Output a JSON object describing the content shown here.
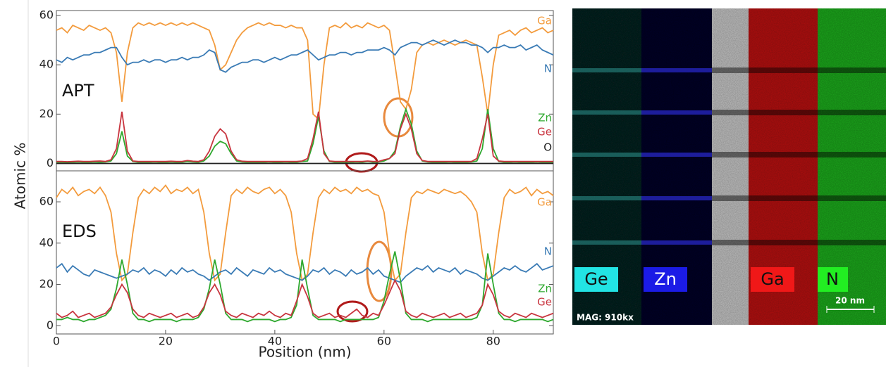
{
  "chart_data": [
    {
      "type": "line",
      "annotation": "APT",
      "y_label": "Atomic %",
      "x": [
        0,
        1,
        2,
        3,
        4,
        5,
        6,
        7,
        8,
        9,
        10,
        11,
        12,
        13,
        14,
        15,
        16,
        17,
        18,
        19,
        20,
        21,
        22,
        23,
        24,
        25,
        26,
        27,
        28,
        29,
        30,
        31,
        32,
        33,
        34,
        35,
        36,
        37,
        38,
        39,
        40,
        41,
        42,
        43,
        44,
        45,
        46,
        47,
        48,
        49,
        50,
        51,
        52,
        53,
        54,
        55,
        56,
        57,
        58,
        59,
        60,
        61,
        62,
        63,
        64,
        65,
        66,
        67,
        68,
        69,
        70,
        71,
        72,
        73,
        74,
        75,
        76,
        77,
        78,
        79,
        80,
        81,
        82,
        83,
        84,
        85,
        86,
        87,
        88,
        89,
        90,
        91
      ],
      "xlim": [
        0,
        91
      ],
      "ylim": [
        -3,
        62
      ],
      "yticks": [
        0,
        20,
        40,
        60
      ],
      "series": [
        {
          "name": "Ga",
          "color": "#f39b3d",
          "values": [
            54,
            55,
            53,
            56,
            55,
            54,
            56,
            55,
            54,
            55,
            53,
            45,
            25,
            45,
            55,
            57,
            56,
            57,
            56,
            57,
            56,
            57,
            56,
            57,
            56,
            57,
            56,
            55,
            54,
            48,
            38,
            40,
            45,
            50,
            53,
            55,
            56,
            57,
            56,
            57,
            56,
            56,
            55,
            56,
            55,
            55,
            50,
            20,
            18,
            40,
            55,
            56,
            55,
            57,
            55,
            56,
            55,
            57,
            56,
            55,
            56,
            54,
            40,
            25,
            22,
            30,
            45,
            48,
            49,
            48,
            49,
            50,
            49,
            48,
            49,
            50,
            49,
            48,
            35,
            20,
            40,
            52,
            53,
            54,
            52,
            54,
            55,
            53,
            54,
            55,
            53,
            54
          ]
        },
        {
          "name": "N",
          "color": "#3a7bb5",
          "values": [
            42,
            41,
            43,
            42,
            43,
            44,
            44,
            45,
            45,
            46,
            47,
            47,
            43,
            40,
            41,
            41,
            42,
            41,
            42,
            42,
            41,
            42,
            42,
            43,
            42,
            43,
            43,
            44,
            46,
            45,
            38,
            37,
            39,
            40,
            41,
            41,
            42,
            42,
            41,
            42,
            43,
            42,
            43,
            44,
            44,
            45,
            46,
            44,
            42,
            43,
            44,
            44,
            45,
            45,
            44,
            45,
            45,
            46,
            46,
            46,
            47,
            46,
            44,
            47,
            48,
            49,
            49,
            48,
            49,
            50,
            49,
            48,
            49,
            50,
            49,
            49,
            48,
            48,
            47,
            45,
            47,
            47,
            48,
            47,
            47,
            48,
            46,
            47,
            48,
            46,
            45,
            44
          ]
        },
        {
          "name": "Zn",
          "color": "#2ea82e",
          "values": [
            0.5,
            0.5,
            0.4,
            0.5,
            0.6,
            0.5,
            0.5,
            0.6,
            0.5,
            0.6,
            1,
            4,
            13,
            3,
            0.8,
            0.5,
            0.5,
            0.5,
            0.6,
            0.5,
            0.5,
            0.6,
            0.5,
            0.5,
            0.8,
            0.6,
            0.5,
            1,
            3,
            7,
            9,
            8,
            4,
            1,
            0.6,
            0.5,
            0.5,
            0.5,
            0.5,
            0.6,
            0.5,
            0.5,
            0.6,
            0.5,
            0.5,
            0.8,
            1,
            8,
            19,
            5,
            0.8,
            0.5,
            0.5,
            0.5,
            0.5,
            0.6,
            0.5,
            0.8,
            0.5,
            0.6,
            1,
            2,
            5,
            15,
            22,
            16,
            5,
            1,
            0.6,
            0.5,
            0.5,
            0.5,
            0.6,
            0.5,
            0.5,
            0.5,
            0.6,
            1,
            6,
            22,
            6,
            0.8,
            0.5,
            0.5,
            0.6,
            0.5,
            0.5,
            0.5,
            0.6,
            0.5,
            0.5,
            0.5
          ]
        },
        {
          "name": "Ge",
          "color": "#c8353f",
          "values": [
            0.8,
            0.8,
            0.7,
            0.8,
            0.9,
            0.8,
            0.8,
            0.9,
            1,
            0.8,
            1.5,
            6,
            21,
            5,
            1,
            0.8,
            0.8,
            0.8,
            0.8,
            0.8,
            0.8,
            0.9,
            0.8,
            0.8,
            1.2,
            0.9,
            0.8,
            1.5,
            5,
            11,
            14,
            12,
            5,
            1.5,
            0.9,
            0.8,
            0.8,
            0.8,
            0.8,
            0.8,
            0.8,
            0.8,
            0.8,
            0.8,
            0.8,
            1,
            2,
            10,
            21,
            4,
            1,
            0.8,
            0.8,
            0.8,
            0.8,
            0.8,
            0.8,
            1,
            0.8,
            0.8,
            1.5,
            2,
            4,
            14,
            20,
            14,
            4,
            1.2,
            0.8,
            0.8,
            0.8,
            0.8,
            0.8,
            0.8,
            0.8,
            0.8,
            0.8,
            2,
            10,
            20,
            3,
            1,
            0.8,
            0.8,
            0.8,
            0.8,
            0.8,
            0.8,
            0.8,
            0.8,
            0.8,
            0.8
          ]
        },
        {
          "name": "O",
          "color": "#222222",
          "values": [
            0,
            0,
            0,
            0,
            0,
            0,
            0,
            0,
            0,
            0,
            0,
            0,
            0,
            0,
            0,
            0,
            0,
            0,
            0,
            0,
            0,
            0,
            0,
            0,
            0,
            0,
            0,
            0,
            0,
            0,
            0,
            0,
            0,
            0,
            0,
            0,
            0,
            0,
            0,
            0,
            0,
            0,
            0,
            0,
            0,
            0,
            0,
            0,
            0,
            0,
            0,
            0,
            0,
            0,
            0,
            0,
            0,
            0,
            0,
            0,
            0,
            0,
            0,
            0,
            0,
            0,
            0,
            0,
            0,
            0,
            0,
            0,
            0,
            0,
            0,
            0,
            0,
            0,
            0,
            0,
            0,
            0,
            0,
            0,
            0,
            0,
            0,
            0,
            0,
            0,
            0,
            0
          ]
        }
      ]
    },
    {
      "type": "line",
      "annotation": "EDS",
      "x_label": "Position (nm)",
      "x": [
        0,
        1,
        2,
        3,
        4,
        5,
        6,
        7,
        8,
        9,
        10,
        11,
        12,
        13,
        14,
        15,
        16,
        17,
        18,
        19,
        20,
        21,
        22,
        23,
        24,
        25,
        26,
        27,
        28,
        29,
        30,
        31,
        32,
        33,
        34,
        35,
        36,
        37,
        38,
        39,
        40,
        41,
        42,
        43,
        44,
        45,
        46,
        47,
        48,
        49,
        50,
        51,
        52,
        53,
        54,
        55,
        56,
        57,
        58,
        59,
        60,
        61,
        62,
        63,
        64,
        65,
        66,
        67,
        68,
        69,
        70,
        71,
        72,
        73,
        74,
        75,
        76,
        77,
        78,
        79,
        80,
        81,
        82,
        83,
        84,
        85,
        86,
        87,
        88,
        89,
        90,
        91
      ],
      "xlim": [
        0,
        91
      ],
      "xticks": [
        0,
        20,
        40,
        60,
        80
      ],
      "ylim": [
        -4,
        75
      ],
      "yticks": [
        0,
        20,
        40,
        60
      ],
      "series": [
        {
          "name": "Ga",
          "color": "#f39b3d",
          "values": [
            62,
            66,
            64,
            67,
            63,
            65,
            66,
            64,
            67,
            63,
            55,
            35,
            22,
            25,
            45,
            62,
            66,
            64,
            67,
            65,
            68,
            64,
            66,
            65,
            67,
            64,
            66,
            55,
            35,
            22,
            25,
            45,
            63,
            66,
            64,
            67,
            65,
            64,
            66,
            67,
            64,
            66,
            63,
            55,
            35,
            22,
            25,
            45,
            62,
            66,
            64,
            67,
            65,
            66,
            64,
            67,
            65,
            66,
            64,
            63,
            55,
            35,
            22,
            25,
            45,
            62,
            65,
            64,
            66,
            65,
            64,
            66,
            65,
            64,
            65,
            63,
            60,
            55,
            35,
            22,
            25,
            45,
            62,
            66,
            64,
            65,
            67,
            63,
            66,
            64,
            65,
            63
          ]
        },
        {
          "name": "N",
          "color": "#3a7bb5",
          "values": [
            28,
            30,
            26,
            29,
            27,
            25,
            24,
            27,
            26,
            25,
            24,
            23,
            24,
            25,
            27,
            26,
            28,
            25,
            27,
            26,
            24,
            27,
            25,
            28,
            26,
            27,
            25,
            24,
            22,
            24,
            26,
            27,
            25,
            28,
            26,
            24,
            27,
            26,
            25,
            28,
            26,
            27,
            25,
            24,
            23,
            22,
            24,
            27,
            26,
            28,
            25,
            27,
            26,
            24,
            27,
            25,
            26,
            28,
            25,
            27,
            24,
            23,
            22,
            21,
            24,
            26,
            28,
            27,
            29,
            26,
            28,
            27,
            26,
            28,
            25,
            27,
            26,
            25,
            23,
            22,
            24,
            26,
            28,
            27,
            29,
            27,
            26,
            28,
            30,
            27,
            28,
            29
          ]
        },
        {
          "name": "Zn",
          "color": "#2ea82e",
          "values": [
            3,
            3,
            4,
            3,
            3,
            2,
            3,
            3,
            4,
            5,
            8,
            18,
            32,
            20,
            6,
            3,
            3,
            2,
            3,
            3,
            3,
            3,
            2,
            3,
            3,
            3,
            4,
            8,
            18,
            32,
            20,
            6,
            3,
            3,
            3,
            2,
            3,
            3,
            3,
            3,
            2,
            3,
            3,
            4,
            10,
            32,
            18,
            5,
            3,
            3,
            3,
            3,
            2,
            3,
            3,
            3,
            3,
            3,
            3,
            4,
            12,
            25,
            36,
            22,
            6,
            3,
            3,
            3,
            2,
            3,
            3,
            3,
            3,
            3,
            3,
            3,
            3,
            4,
            10,
            35,
            20,
            6,
            3,
            3,
            2,
            3,
            3,
            3,
            3,
            3,
            2,
            3
          ]
        },
        {
          "name": "Ge",
          "color": "#c8353f",
          "values": [
            6,
            4,
            5,
            7,
            4,
            5,
            6,
            4,
            5,
            6,
            9,
            15,
            20,
            16,
            8,
            5,
            4,
            6,
            5,
            4,
            5,
            6,
            4,
            5,
            6,
            4,
            5,
            9,
            16,
            20,
            15,
            7,
            5,
            4,
            6,
            5,
            4,
            6,
            5,
            7,
            5,
            4,
            6,
            5,
            12,
            20,
            14,
            6,
            4,
            5,
            6,
            4,
            5,
            4,
            6,
            8,
            5,
            4,
            6,
            5,
            10,
            16,
            22,
            17,
            7,
            5,
            4,
            6,
            5,
            4,
            5,
            6,
            4,
            5,
            6,
            4,
            5,
            6,
            10,
            20,
            15,
            7,
            5,
            4,
            6,
            5,
            4,
            6,
            5,
            4,
            5,
            6
          ]
        }
      ]
    }
  ],
  "image_panel": {
    "labels": [
      "Ge",
      "Zn",
      "Ga",
      "N"
    ],
    "magnification": "MAG: 910kx",
    "scale_bar": "20 nm"
  }
}
